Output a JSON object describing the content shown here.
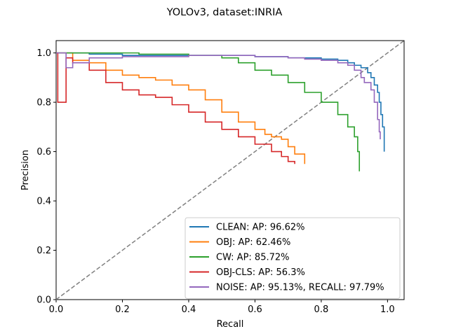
{
  "chart_data": {
    "type": "line",
    "title": "YOLOv3, dataset:INRIA",
    "xlabel": "Recall",
    "ylabel": "Precision",
    "xlim": [
      0.0,
      1.05
    ],
    "ylim": [
      0.0,
      1.05
    ],
    "xticks": [
      "0.0",
      "0.2",
      "0.4",
      "0.6",
      "0.8",
      "1.0"
    ],
    "yticks": [
      "0.0",
      "0.2",
      "0.4",
      "0.6",
      "0.8",
      "1.0"
    ],
    "grid": false,
    "legend_position": "lower-right",
    "diagonal": {
      "x": [
        0,
        1.05
      ],
      "y": [
        0,
        1.05
      ],
      "color": "#808080",
      "style": "dashed"
    },
    "series": [
      {
        "name": "CLEAN: AP: 96.62%",
        "color": "#1f77b4",
        "x": [
          0.0,
          0.1,
          0.2,
          0.35,
          0.5,
          0.6,
          0.7,
          0.8,
          0.85,
          0.88,
          0.9,
          0.92,
          0.94,
          0.95,
          0.96,
          0.97,
          0.975,
          0.98,
          0.985,
          0.99
        ],
        "y": [
          1.0,
          0.995,
          0.99,
          0.99,
          0.99,
          0.985,
          0.98,
          0.975,
          0.97,
          0.96,
          0.95,
          0.94,
          0.92,
          0.9,
          0.87,
          0.84,
          0.8,
          0.75,
          0.7,
          0.6
        ]
      },
      {
        "name": "OBJ: AP: 62.46%",
        "color": "#ff7f0e",
        "x": [
          0.0,
          0.05,
          0.1,
          0.15,
          0.2,
          0.25,
          0.3,
          0.35,
          0.4,
          0.45,
          0.5,
          0.55,
          0.6,
          0.63,
          0.65,
          0.68,
          0.7,
          0.72,
          0.75
        ],
        "y": [
          1.0,
          0.97,
          0.96,
          0.93,
          0.91,
          0.9,
          0.89,
          0.87,
          0.85,
          0.81,
          0.76,
          0.72,
          0.69,
          0.67,
          0.66,
          0.65,
          0.62,
          0.59,
          0.55
        ]
      },
      {
        "name": "CW: AP: 85.72%",
        "color": "#2ca02c",
        "x": [
          0.0,
          0.1,
          0.25,
          0.4,
          0.5,
          0.55,
          0.6,
          0.65,
          0.7,
          0.75,
          0.8,
          0.85,
          0.88,
          0.9,
          0.91,
          0.915
        ],
        "y": [
          1.0,
          1.0,
          0.995,
          0.99,
          0.98,
          0.96,
          0.93,
          0.91,
          0.88,
          0.84,
          0.8,
          0.75,
          0.7,
          0.66,
          0.6,
          0.52
        ]
      },
      {
        "name": "OBJ-CLS: AP: 56.3%",
        "color": "#d62728",
        "x": [
          0.0,
          0.003,
          0.005,
          0.03,
          0.05,
          0.1,
          0.15,
          0.2,
          0.25,
          0.3,
          0.35,
          0.4,
          0.45,
          0.5,
          0.55,
          0.6,
          0.65,
          0.68,
          0.7,
          0.72
        ],
        "y": [
          1.0,
          1.0,
          0.8,
          0.98,
          0.96,
          0.93,
          0.88,
          0.85,
          0.83,
          0.82,
          0.79,
          0.76,
          0.72,
          0.69,
          0.66,
          0.63,
          0.6,
          0.58,
          0.56,
          0.55
        ]
      },
      {
        "name": "NOISE: AP: 95.13%, RECALL: 97.79%",
        "color": "#9467bd",
        "x": [
          0.0,
          0.02,
          0.03,
          0.05,
          0.1,
          0.2,
          0.4,
          0.6,
          0.7,
          0.75,
          0.8,
          0.85,
          0.88,
          0.9,
          0.92,
          0.93,
          0.95,
          0.96,
          0.97,
          0.975,
          0.978
        ],
        "y": [
          1.0,
          1.0,
          0.94,
          0.96,
          0.98,
          0.985,
          0.99,
          0.985,
          0.98,
          0.975,
          0.97,
          0.96,
          0.95,
          0.93,
          0.9,
          0.88,
          0.85,
          0.8,
          0.73,
          0.68,
          0.65
        ]
      }
    ]
  }
}
